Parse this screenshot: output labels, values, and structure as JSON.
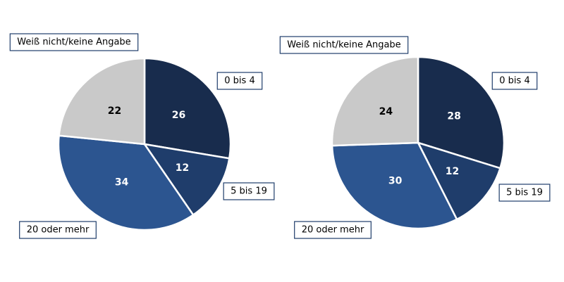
{
  "chart_data": [
    {
      "type": "pie",
      "categories": [
        "0 bis 4",
        "5 bis 19",
        "20 oder mehr",
        "Weiß nicht/keine Angabe"
      ],
      "values": [
        26,
        12,
        34,
        22
      ],
      "colors": [
        "#182c4d",
        "#1f3d6b",
        "#2c5590",
        "#c9c9c9"
      ]
    },
    {
      "type": "pie",
      "categories": [
        "0 bis 4",
        "5 bis 19",
        "20 oder mehr",
        "Weiß nicht/keine Angabe"
      ],
      "values": [
        28,
        12,
        30,
        24
      ],
      "colors": [
        "#182c4d",
        "#1f3d6b",
        "#2c5590",
        "#c9c9c9"
      ]
    }
  ]
}
